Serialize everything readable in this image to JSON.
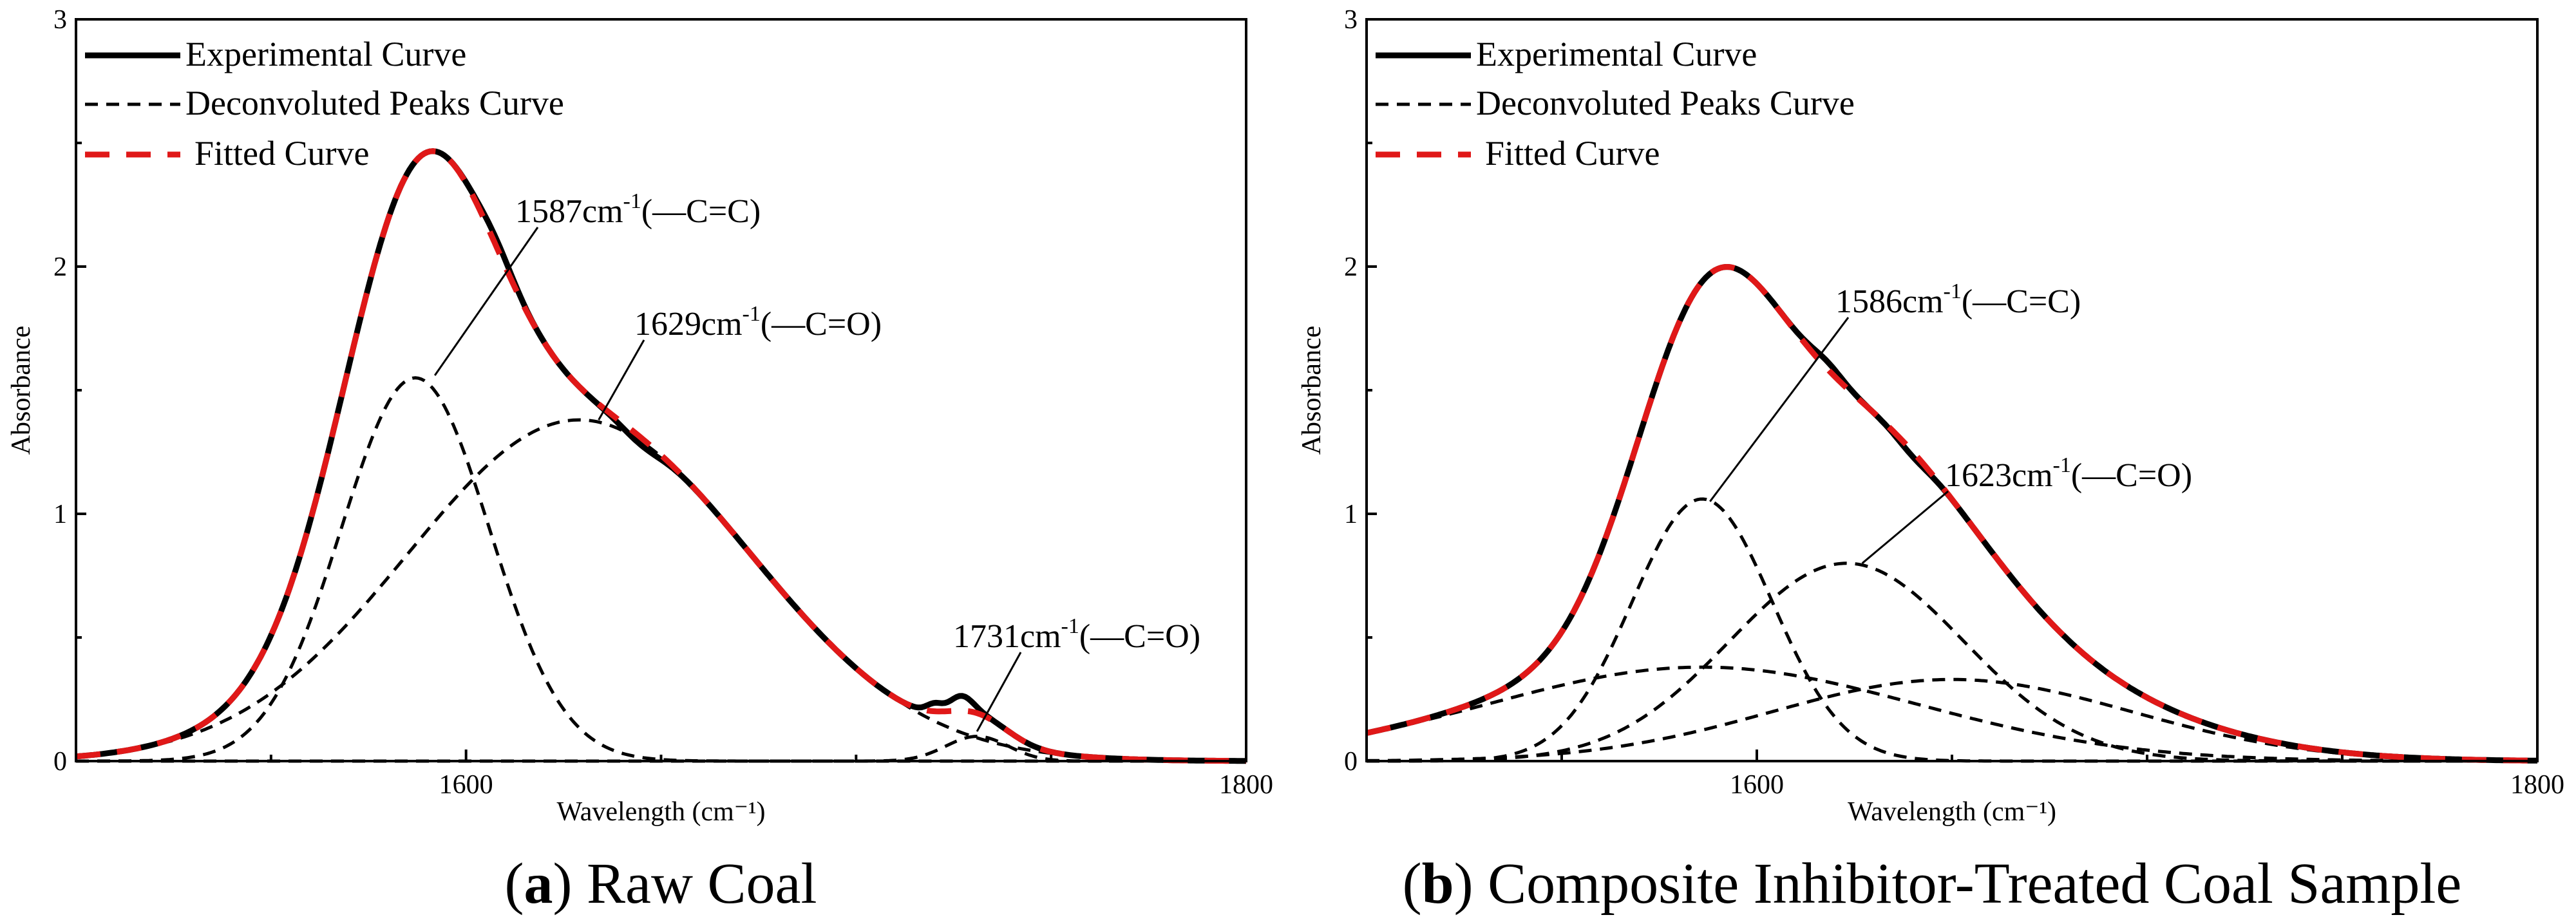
{
  "chart_data": [
    {
      "type": "line",
      "panel_letter": "a",
      "caption": "Raw Coal",
      "xlabel": "Wavelength (cm⁻¹)",
      "ylabel": "Absorbance",
      "xlim": [
        1500,
        1800
      ],
      "ylim": [
        0,
        3
      ],
      "xticks": [
        1600,
        1800
      ],
      "xticks_minor": [
        1550,
        1650,
        1700,
        1750
      ],
      "yticks": [
        0,
        1,
        2,
        3
      ],
      "legend": {
        "position": "top-left",
        "entries": [
          {
            "label": "Experimental Curve",
            "style": "solid-black"
          },
          {
            "label": "Deconvoluted Peaks Curve",
            "style": "dashed-black"
          },
          {
            "label": "Fitted Curve",
            "style": "dashed-red"
          }
        ]
      },
      "peaks": [
        {
          "center": 1587,
          "height": 1.55,
          "width": 19
        },
        {
          "center": 1629,
          "height": 1.38,
          "width": 44
        },
        {
          "center": 1731,
          "height": 0.1,
          "width": 8
        }
      ],
      "experimental_wiggles": [
        {
          "center": 1608,
          "height": 0.03,
          "width": 4
        },
        {
          "center": 1645,
          "height": -0.03,
          "width": 5
        },
        {
          "center": 1720,
          "height": 0.03,
          "width": 2
        },
        {
          "center": 1727,
          "height": 0.06,
          "width": 3
        }
      ],
      "annotations": [
        {
          "label": "1587cm",
          "sup": "-1",
          "group": "(—C=C)",
          "point_x": 1592,
          "point_y": 1.56
        },
        {
          "label": "1629cm",
          "sup": "-1",
          "group": "(—C=O)",
          "point_x": 1634,
          "point_y": 1.38
        },
        {
          "label": "1731cm",
          "sup": "-1",
          "group": "(—C=O)",
          "point_x": 1731,
          "point_y": 0.12
        }
      ]
    },
    {
      "type": "line",
      "panel_letter": "b",
      "caption": "Composite Inhibitor-Treated Coal Sample",
      "xlabel": "Wavelength (cm⁻¹)",
      "ylabel": "Absorbance",
      "xlim": [
        1500,
        1800
      ],
      "ylim": [
        0,
        3
      ],
      "xticks": [
        1600,
        1800
      ],
      "xticks_minor": [
        1550,
        1650,
        1700,
        1750
      ],
      "yticks": [
        0,
        1,
        2,
        3
      ],
      "legend": {
        "position": "top-left",
        "entries": [
          {
            "label": "Experimental Curve",
            "style": "solid-black"
          },
          {
            "label": "Deconvoluted Peaks Curve",
            "style": "dashed-black"
          },
          {
            "label": "Fitted Curve",
            "style": "dashed-red"
          }
        ]
      },
      "peaks": [
        {
          "center": 1586,
          "height": 1.06,
          "width": 18
        },
        {
          "center": 1623,
          "height": 0.8,
          "width": 30
        },
        {
          "center": 1586,
          "height": 0.38,
          "width": 55
        },
        {
          "center": 1650,
          "height": 0.33,
          "width": 46
        }
      ],
      "experimental_wiggles": [
        {
          "center": 1618,
          "height": 0.03,
          "width": 4
        },
        {
          "center": 1640,
          "height": -0.02,
          "width": 4
        }
      ],
      "annotations": [
        {
          "label": "1586cm",
          "sup": "-1",
          "group": "(—C=C)",
          "point_x": 1588,
          "point_y": 1.05
        },
        {
          "label": "1623cm",
          "sup": "-1",
          "group": "(—C=O)",
          "point_x": 1627,
          "point_y": 0.8
        }
      ]
    }
  ]
}
